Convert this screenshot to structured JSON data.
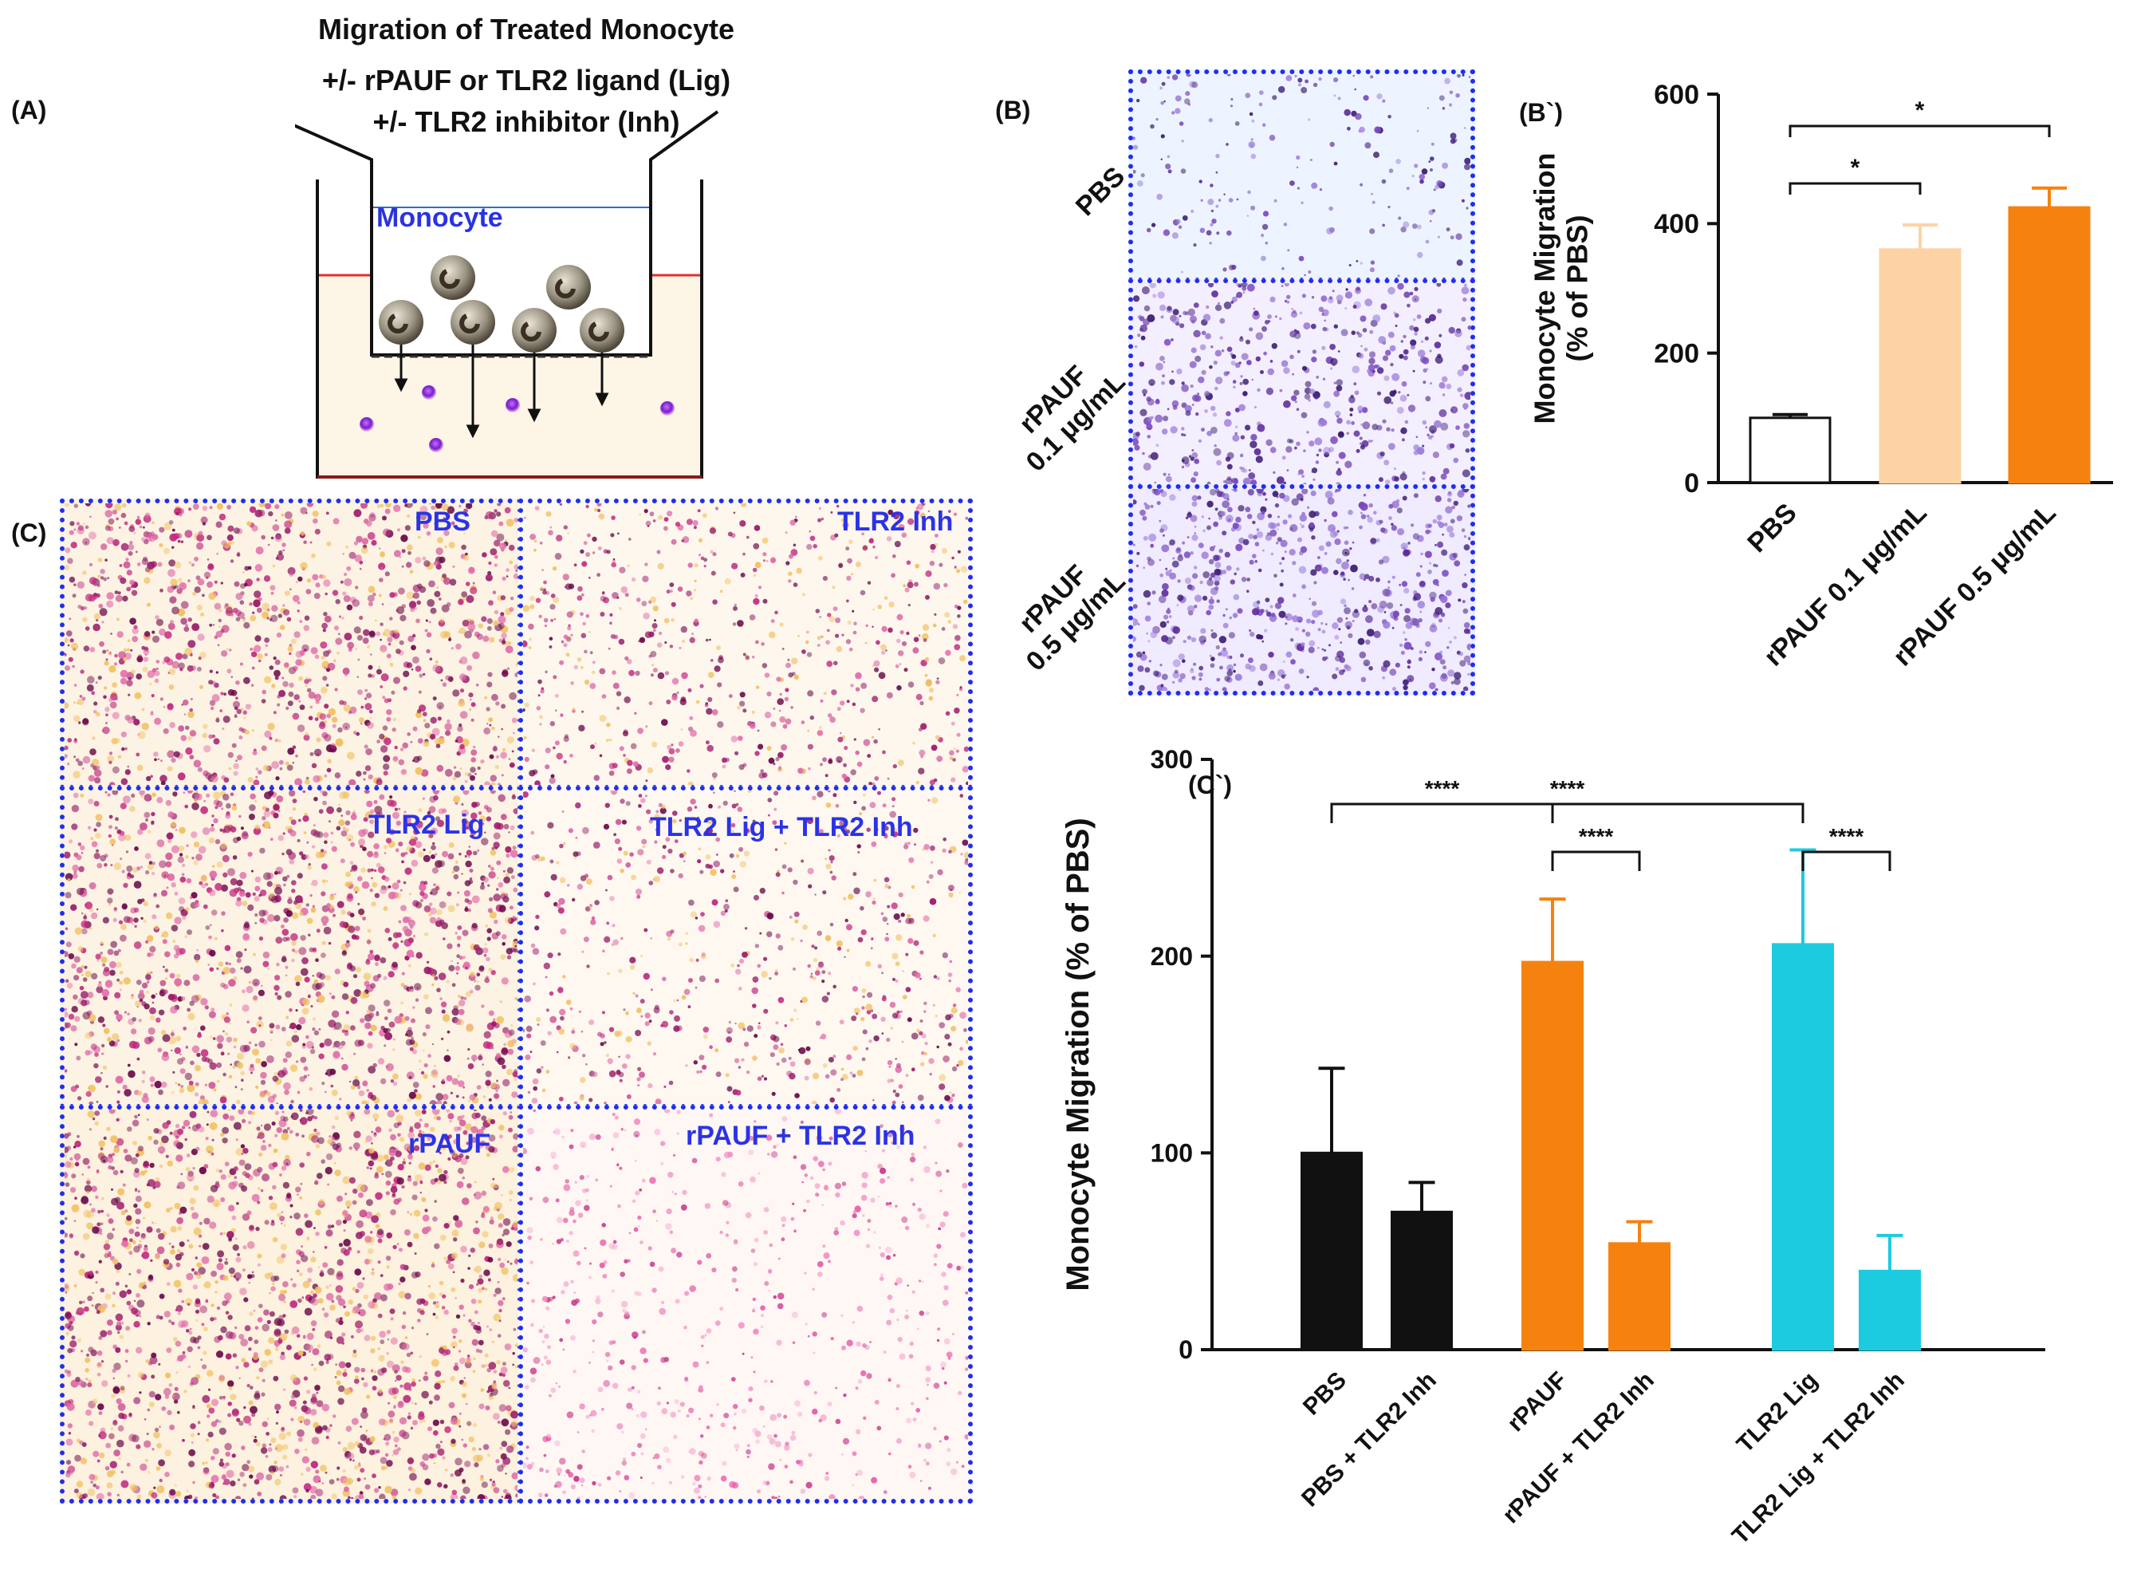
{
  "panel_labels": {
    "a": "(A)",
    "b": "(B)",
    "b_prime": "(B`)",
    "c": "(C)",
    "c_prime": "(C`)"
  },
  "schematic": {
    "title_lines": [
      "Migration of Treated Monocyte",
      "+/- rPAUF or TLR2 ligand (Lig)",
      "+/- TLR2 inhibitor (Inh)"
    ],
    "insert_label": "Monocyte"
  },
  "micrographs_b": [
    {
      "label_lines": [
        "PBS"
      ]
    },
    {
      "label_lines": [
        "rPAUF",
        "0.1 μg/mL"
      ]
    },
    {
      "label_lines": [
        "rPAUF",
        "0.5 μg/mL"
      ]
    }
  ],
  "micrographs_c": [
    {
      "label": "PBS"
    },
    {
      "label": "TLR2 Inh"
    },
    {
      "label": "TLR2 Lig"
    },
    {
      "label": "TLR2 Lig + TLR2 Inh"
    },
    {
      "label": "rPAUF"
    },
    {
      "label": "rPAUF + TLR2 Inh"
    }
  ],
  "colors": {
    "stain_purple": "#5a2a9a",
    "stain_magenta": "#9a1a6a",
    "border_blue": "#1e2ff0",
    "bar_black": "#111111",
    "bar_orange": "#f5820f",
    "bar_light_orange": "#fdd3a6",
    "bar_cyan": "#1ccbe0"
  },
  "chart_data": [
    {
      "id": "B`",
      "type": "bar",
      "title": "",
      "xlabel": "",
      "ylabel": "Monocyte Migration (% of PBS)",
      "ylabel_lines": [
        "Monocyte Migration",
        "(% of PBS)"
      ],
      "ylim": [
        0,
        600
      ],
      "yticks": [
        0,
        200,
        400,
        600
      ],
      "categories": [
        "PBS",
        "rPAUF 0.1 μg/mL",
        "rPAUF 0.5 μg/mL"
      ],
      "values": [
        100,
        360,
        425
      ],
      "errors": [
        5,
        38,
        30
      ],
      "bar_colors": [
        "#ffffff",
        "#fdd3a6",
        "#f5820f"
      ],
      "significance": [
        {
          "from": 0,
          "to": 1,
          "label": "*"
        },
        {
          "from": 0,
          "to": 2,
          "label": "*"
        }
      ]
    },
    {
      "id": "C`",
      "type": "bar",
      "title": "",
      "xlabel": "",
      "ylabel": "Monocyte Migration (% of PBS)",
      "ylim": [
        0,
        300
      ],
      "yticks": [
        0,
        100,
        200,
        300
      ],
      "categories": [
        "PBS",
        "PBS + TLR2 Inh",
        "rPAUF",
        "rPAUF + TLR2 Inh",
        "TLR2 Lig",
        "TLR2 Lig + TLR2 Inh"
      ],
      "values": [
        100,
        70,
        197,
        54,
        206,
        40
      ],
      "errors": [
        43,
        15,
        32,
        11,
        48,
        18
      ],
      "bar_colors": [
        "#111111",
        "#111111",
        "#f5820f",
        "#f5820f",
        "#1ccbe0",
        "#1ccbe0"
      ],
      "significance": [
        {
          "from": 0,
          "to": 2,
          "label": "****"
        },
        {
          "from": 2,
          "to": 3,
          "label": "****"
        },
        {
          "from": 0,
          "to": 4,
          "label": "****"
        },
        {
          "from": 4,
          "to": 5,
          "label": "****"
        }
      ]
    }
  ]
}
